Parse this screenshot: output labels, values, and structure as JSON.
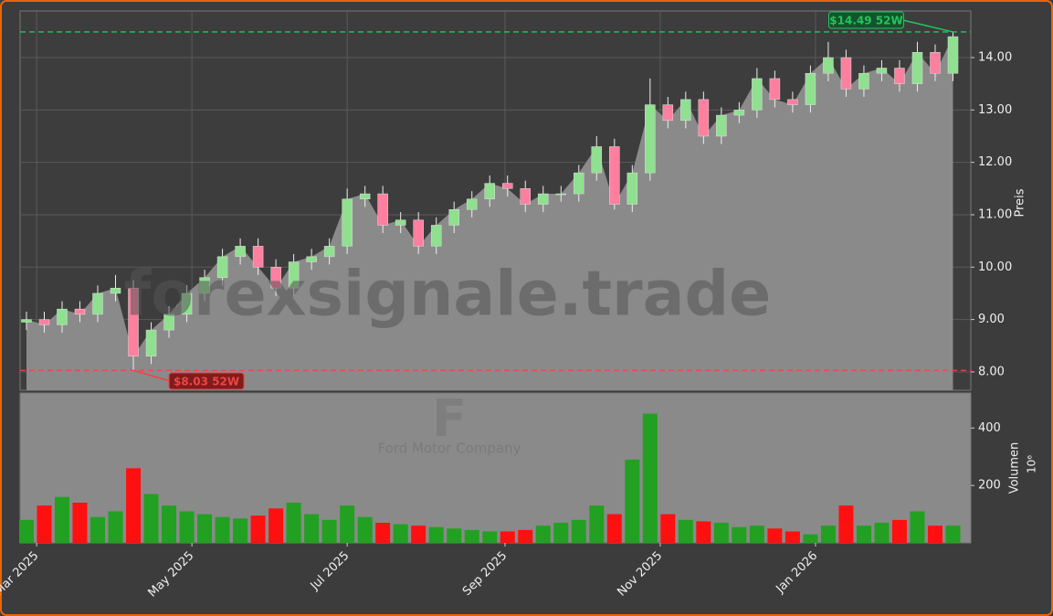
{
  "chart_data": {
    "type": "candlestick",
    "watermark": "forexsignale.trade",
    "symbol": "F",
    "company": "Ford Motor Company",
    "ylabel": "Preis",
    "x": [
      -4,
      3,
      10,
      17,
      24,
      31,
      38,
      45,
      52,
      59,
      66,
      73,
      80,
      87,
      94,
      101,
      108,
      115,
      122,
      129,
      136,
      143,
      150,
      157,
      164,
      171,
      178,
      185,
      192,
      199,
      206,
      213,
      220,
      227,
      234,
      241,
      248,
      255,
      262,
      269,
      276,
      283,
      290,
      297,
      304,
      311,
      318,
      325,
      332,
      339,
      346,
      353,
      360
    ],
    "open": [
      8.95,
      9.0,
      8.9,
      9.2,
      9.1,
      9.5,
      9.6,
      8.3,
      8.8,
      9.1,
      9.5,
      9.8,
      10.2,
      10.4,
      10.0,
      9.6,
      10.1,
      10.2,
      10.4,
      11.3,
      11.4,
      10.8,
      10.9,
      10.4,
      10.8,
      11.1,
      11.3,
      11.6,
      11.5,
      11.2,
      11.4,
      11.4,
      11.8,
      12.3,
      11.2,
      11.8,
      13.1,
      12.8,
      13.2,
      12.5,
      12.9,
      13.0,
      13.6,
      13.2,
      13.1,
      13.7,
      14.0,
      13.4,
      13.7,
      13.8,
      13.5,
      14.1,
      13.7
    ],
    "high": [
      9.15,
      9.15,
      9.35,
      9.35,
      9.65,
      9.85,
      9.75,
      8.95,
      9.25,
      9.65,
      9.95,
      10.35,
      10.55,
      10.55,
      10.15,
      10.25,
      10.35,
      10.55,
      11.5,
      11.55,
      11.55,
      11.05,
      11.05,
      10.95,
      11.25,
      11.45,
      11.75,
      11.75,
      11.65,
      11.55,
      11.55,
      11.95,
      12.5,
      12.45,
      11.95,
      13.6,
      13.25,
      13.35,
      13.35,
      13.05,
      13.15,
      13.8,
      13.75,
      13.35,
      13.85,
      14.3,
      14.15,
      13.85,
      13.95,
      13.95,
      14.3,
      14.25,
      14.49
    ],
    "low": [
      8.8,
      8.75,
      8.75,
      8.95,
      8.95,
      9.35,
      8.03,
      8.15,
      8.65,
      8.95,
      9.35,
      9.65,
      10.05,
      9.85,
      9.45,
      9.45,
      9.95,
      10.05,
      10.25,
      11.15,
      10.65,
      10.65,
      10.25,
      10.25,
      10.65,
      10.95,
      11.15,
      11.35,
      11.05,
      11.05,
      11.25,
      11.25,
      11.65,
      11.1,
      11.05,
      11.65,
      12.65,
      12.65,
      12.35,
      12.35,
      12.75,
      12.85,
      13.05,
      12.95,
      12.95,
      13.55,
      13.25,
      13.25,
      13.55,
      13.35,
      13.35,
      13.55,
      13.55
    ],
    "close": [
      9.0,
      8.9,
      9.2,
      9.1,
      9.5,
      9.6,
      8.3,
      8.8,
      9.1,
      9.5,
      9.8,
      10.2,
      10.4,
      10.0,
      9.6,
      10.1,
      10.2,
      10.4,
      11.3,
      11.4,
      10.8,
      10.9,
      10.4,
      10.8,
      11.1,
      11.3,
      11.6,
      11.5,
      11.2,
      11.4,
      11.4,
      11.8,
      12.3,
      11.2,
      11.8,
      13.1,
      12.8,
      13.2,
      12.5,
      12.9,
      13.0,
      13.6,
      13.2,
      13.1,
      13.7,
      14.0,
      13.4,
      13.7,
      13.8,
      13.5,
      14.1,
      13.7,
      14.4
    ],
    "up_color": "#8fe08f",
    "down_color": "#ff7f9f",
    "area_color": "#8a8a8a",
    "xlim": [
      -6.5,
      367
    ],
    "xticks": [
      {
        "value": 0,
        "label": "Mar 2025"
      },
      {
        "value": 61,
        "label": "May 2025"
      },
      {
        "value": 122,
        "label": "Jul 2025"
      },
      {
        "value": 184,
        "label": "Sep 2025"
      },
      {
        "value": 245,
        "label": "Nov 2025"
      },
      {
        "value": 306,
        "label": "Jan 2026"
      }
    ],
    "ylim": [
      7.65,
      14.89
    ],
    "yticks": [
      {
        "value": 8,
        "label": "8.00"
      },
      {
        "value": 9,
        "label": "9.00"
      },
      {
        "value": 10,
        "label": "10.00"
      },
      {
        "value": 11,
        "label": "11.00"
      },
      {
        "value": 12,
        "label": "12.00"
      },
      {
        "value": 13,
        "label": "13.00"
      },
      {
        "value": 14,
        "label": "14.00"
      }
    ],
    "grid": true,
    "annotations": [
      {
        "label": "$14.49 52W",
        "value": 14.49,
        "color": "#22c55e"
      },
      {
        "label": "$8.03 52W",
        "value": 8.03,
        "color": "#ef4444"
      }
    ],
    "volume": {
      "ylabel": "Volumen",
      "unit": "10⁶",
      "values": [
        80,
        130,
        160,
        140,
        90,
        110,
        260,
        170,
        130,
        110,
        100,
        90,
        85,
        95,
        120,
        140,
        100,
        80,
        130,
        90,
        70,
        65,
        60,
        55,
        50,
        45,
        40,
        40,
        45,
        60,
        70,
        80,
        130,
        100,
        290,
        450,
        100,
        80,
        75,
        70,
        55,
        60,
        50,
        40,
        30,
        60,
        130,
        60,
        70,
        80,
        110,
        60,
        60
      ],
      "ylim": [
        0,
        522
      ],
      "yticks": [
        200,
        400
      ],
      "up_color": "#22a022",
      "down_color": "#ff1010"
    }
  }
}
